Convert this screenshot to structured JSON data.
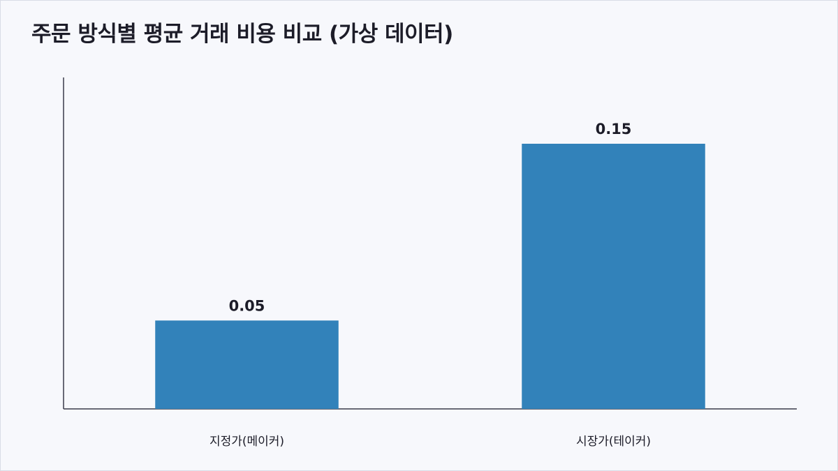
{
  "chart_data": {
    "type": "bar",
    "title": "주문 방식별 평균 거래 비용 비교 (가상 데이터)",
    "categories": [
      "지정가(메이커)",
      "시장가(테이커)"
    ],
    "values": [
      0.05,
      0.15
    ],
    "value_labels": [
      "0.05",
      "0.15"
    ],
    "ylim": [
      0,
      0.1875
    ],
    "xlabel": "",
    "ylabel": "",
    "grid": false,
    "legend": "none",
    "bar_color": "#3282ba",
    "axis_color": "#3a3a4a"
  }
}
